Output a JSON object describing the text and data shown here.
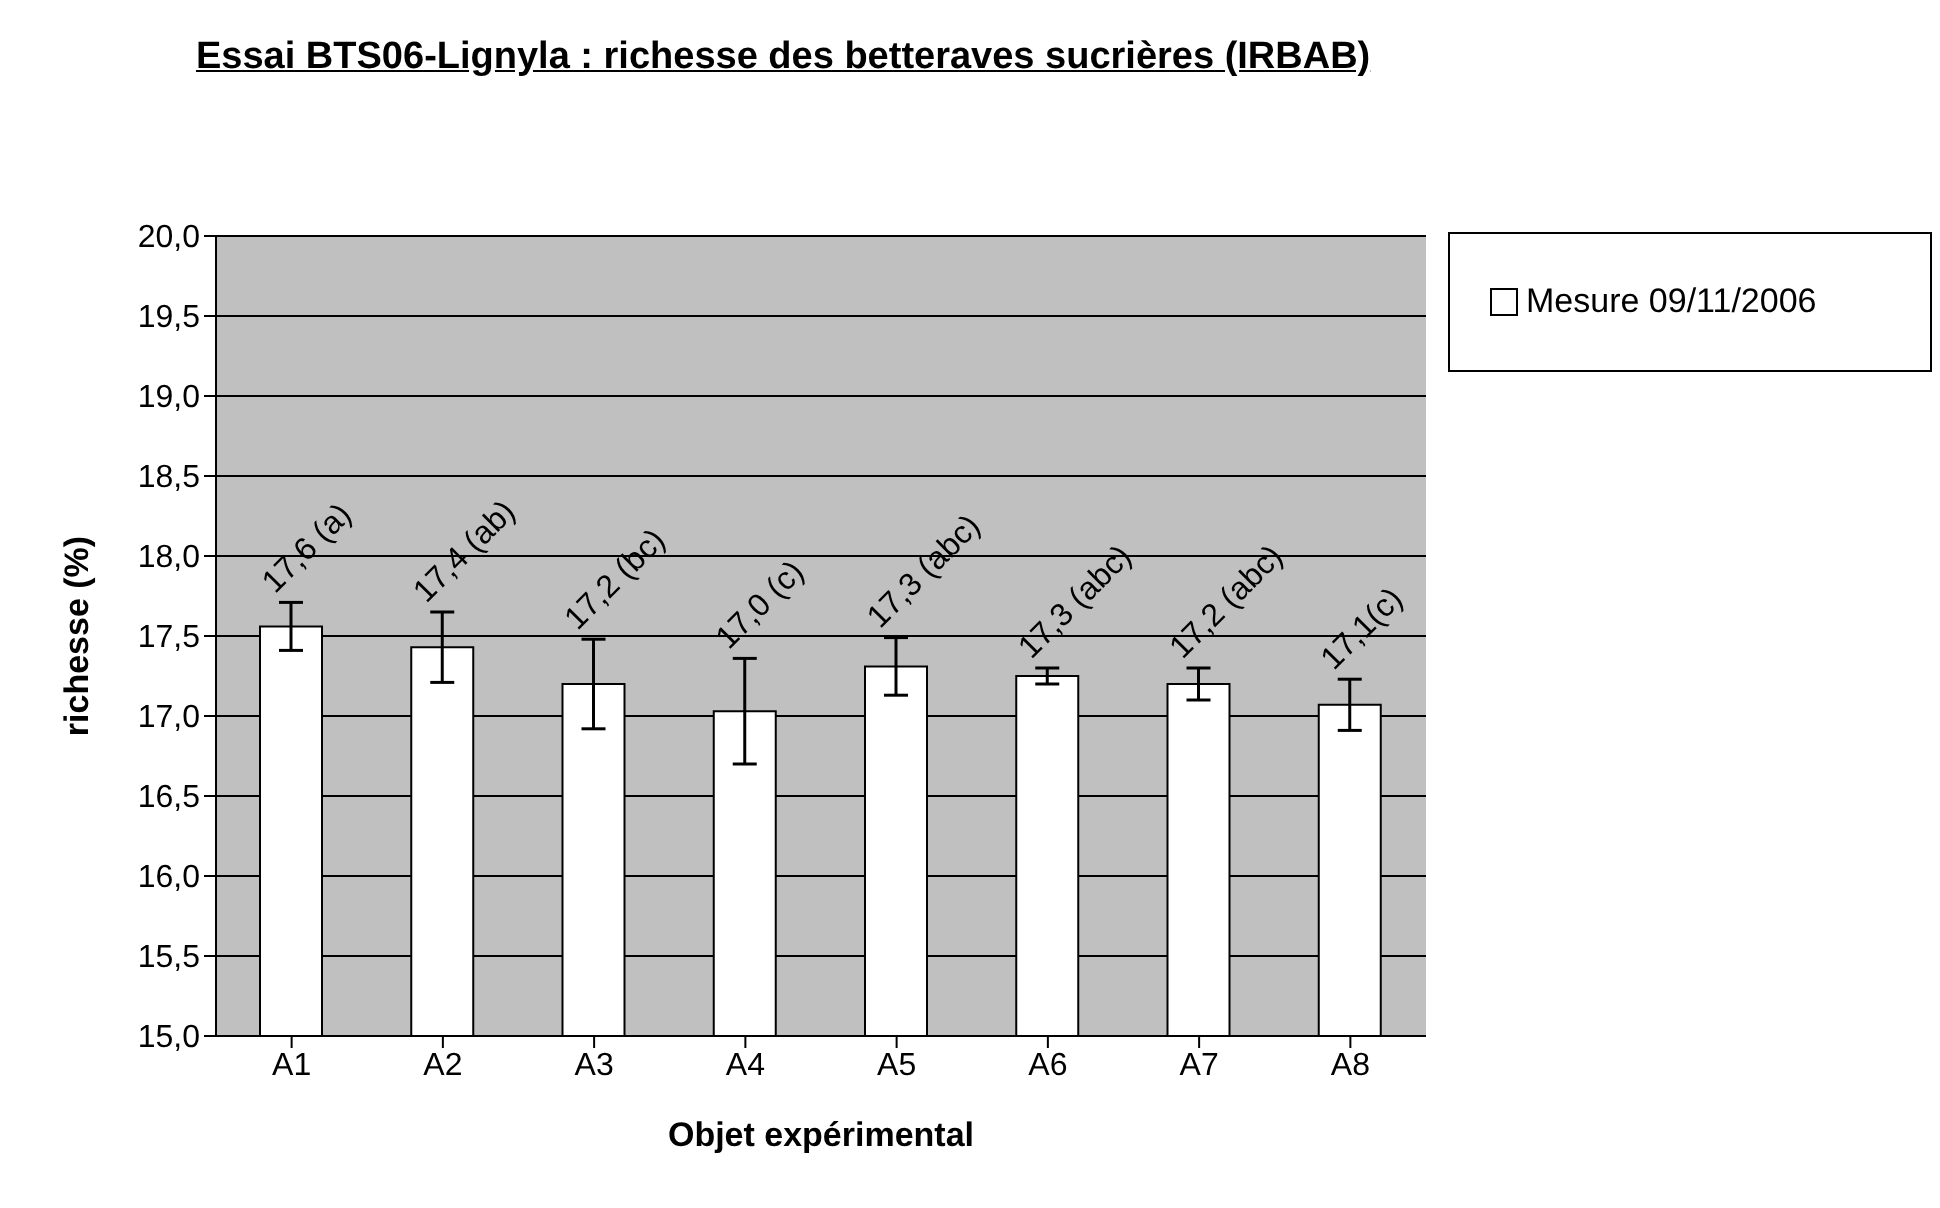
{
  "chart_data": {
    "type": "bar",
    "title": "Essai BTS06-Lignyla : richesse des betteraves sucrières (IRBAB)",
    "xlabel": "Objet expérimental",
    "ylabel": "richesse (%)",
    "categories": [
      "A1",
      "A2",
      "A3",
      "A4",
      "A5",
      "A6",
      "A7",
      "A8"
    ],
    "series": [
      {
        "name": "Mesure 09/11/2006",
        "color": "#ffffff",
        "values": [
          17.56,
          17.43,
          17.2,
          17.03,
          17.31,
          17.25,
          17.2,
          17.07
        ],
        "errors": [
          0.15,
          0.22,
          0.28,
          0.33,
          0.18,
          0.05,
          0.1,
          0.16
        ],
        "value_labels": [
          "17,6 (a)",
          "17,4 (ab)",
          "17,2 (bc)",
          "17,0 (c)",
          "17,3 (abc)",
          "17,3 (abc)",
          "17,2 (abc)",
          "17,1(c)"
        ]
      }
    ],
    "ylim": [
      15,
      20
    ],
    "yticks": [
      {
        "value": 15,
        "label": "15,0"
      },
      {
        "value": 15.5,
        "label": "15,5"
      },
      {
        "value": 16,
        "label": "16,0"
      },
      {
        "value": 16.5,
        "label": "16,5"
      },
      {
        "value": 17,
        "label": "17,0"
      },
      {
        "value": 17.5,
        "label": "17,5"
      },
      {
        "value": 18,
        "label": "18,0"
      },
      {
        "value": 18.5,
        "label": "18,5"
      },
      {
        "value": 19,
        "label": "19,0"
      },
      {
        "value": 19.5,
        "label": "19,5"
      },
      {
        "value": 20,
        "label": "20,0"
      }
    ],
    "grid": "y",
    "legend": "top right"
  }
}
